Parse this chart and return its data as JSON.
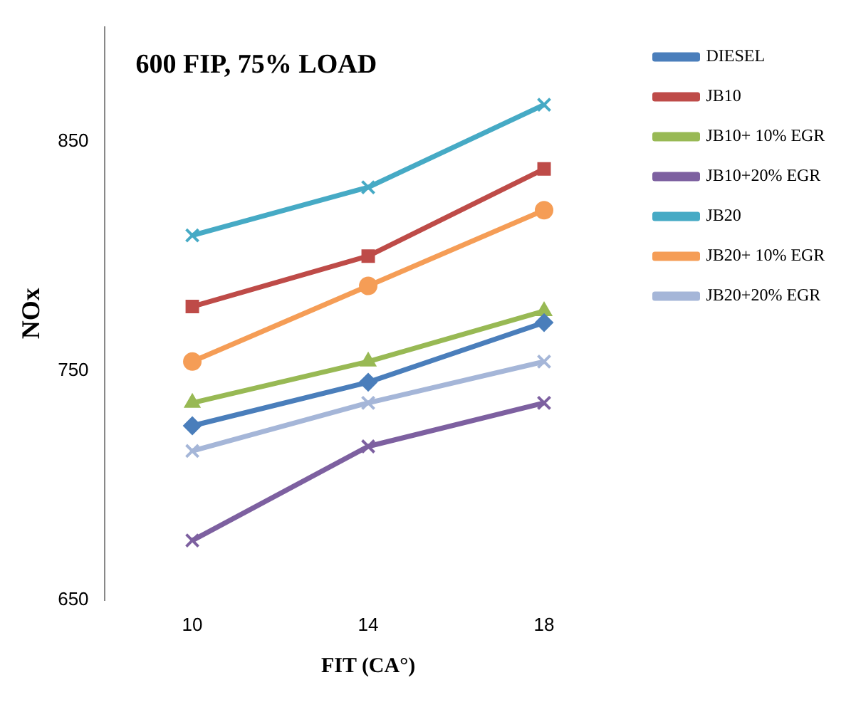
{
  "chart_data": {
    "type": "line",
    "title": "600 FIP, 75% LOAD",
    "xlabel": "FIT (CA°)",
    "ylabel": "NOx",
    "categories": [
      "10",
      "14",
      "18"
    ],
    "series": [
      {
        "name": "DIESEL",
        "color": "#4a7ebb",
        "values": [
          726,
          745,
          771
        ],
        "marker": "diamond"
      },
      {
        "name": "JB10",
        "color": "#be4b48",
        "values": [
          778,
          800,
          838
        ],
        "marker": "square"
      },
      {
        "name": "JB10+ 10% EGR",
        "color": "#98b954",
        "values": [
          736,
          754,
          776
        ],
        "marker": "triangle"
      },
      {
        "name": "JB10+20% EGR",
        "color": "#7d60a0",
        "values": [
          676,
          717,
          736
        ],
        "marker": "cross"
      },
      {
        "name": "JB20",
        "color": "#46aac5",
        "values": [
          809,
          830,
          866
        ],
        "marker": "cross"
      },
      {
        "name": "JB20+ 10% EGR",
        "color": "#f59d56",
        "values": [
          754,
          787,
          820
        ],
        "marker": "circle"
      },
      {
        "name": "JB20+20% EGR",
        "color": "#a5b6d8",
        "values": [
          715,
          736,
          754
        ],
        "marker": "cross"
      }
    ],
    "ylim": [
      650,
      900
    ],
    "yticks": [
      650,
      750,
      850
    ],
    "grid": false,
    "legend": "right"
  }
}
